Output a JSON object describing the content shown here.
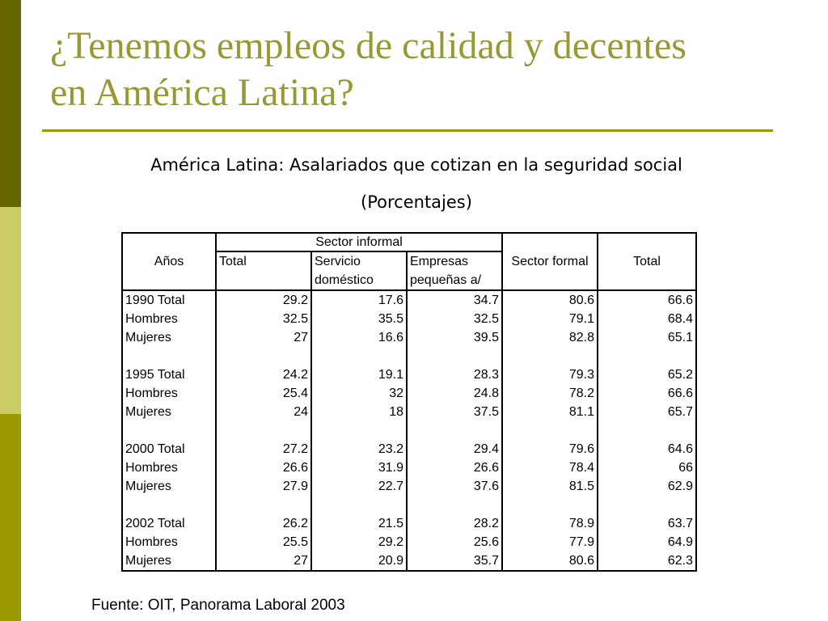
{
  "slide": {
    "title_line1": "¿Tenemos empleos de calidad y decentes",
    "title_line2": "en América Latina?",
    "caption": "América Latina: Asalariados que cotizan en la seguridad social",
    "caption_unit": "(Porcentajes)",
    "source": "Fuente: OIT, Panorama Laboral 2003"
  },
  "colors": {
    "title": "#999933",
    "sidebar_top": "#666600",
    "sidebar_mid": "#cccc66",
    "sidebar_bottom": "#999900"
  },
  "table": {
    "headers": {
      "years": "Años",
      "informal_group": "Sector informal",
      "informal_total": "Total",
      "domestic_l1": "Servicio",
      "domestic_l2": "doméstico",
      "small_l1": "Empresas",
      "small_l2": "pequeñas a/",
      "formal": "Sector formal",
      "total": "Total"
    },
    "groups": [
      {
        "rows": [
          [
            "1990 Total",
            "29.2",
            "17.6",
            "34.7",
            "80.6",
            "66.6"
          ],
          [
            "Hombres",
            "32.5",
            "35.5",
            "32.5",
            "79.1",
            "68.4"
          ],
          [
            "Mujeres",
            "27",
            "16.6",
            "39.5",
            "82.8",
            "65.1"
          ]
        ]
      },
      {
        "rows": [
          [
            "1995 Total",
            "24.2",
            "19.1",
            "28.3",
            "79.3",
            "65.2"
          ],
          [
            "Hombres",
            "25.4",
            "32",
            "24.8",
            "78.2",
            "66.6"
          ],
          [
            "Mujeres",
            "24",
            "18",
            "37.5",
            "81.1",
            "65.7"
          ]
        ]
      },
      {
        "rows": [
          [
            "2000 Total",
            "27.2",
            "23.2",
            "29.4",
            "79.6",
            "64.6"
          ],
          [
            "Hombres",
            "26.6",
            "31.9",
            "26.6",
            "78.4",
            "66"
          ],
          [
            "Mujeres",
            "27.9",
            "22.7",
            "37.6",
            "81.5",
            "62.9"
          ]
        ]
      },
      {
        "rows": [
          [
            "2002 Total",
            "26.2",
            "21.5",
            "28.2",
            "78.9",
            "63.7"
          ],
          [
            "Hombres",
            "25.5",
            "29.2",
            "25.6",
            "77.9",
            "64.9"
          ],
          [
            "Mujeres",
            "27",
            "20.9",
            "35.7",
            "80.6",
            "62.3"
          ]
        ]
      }
    ]
  }
}
